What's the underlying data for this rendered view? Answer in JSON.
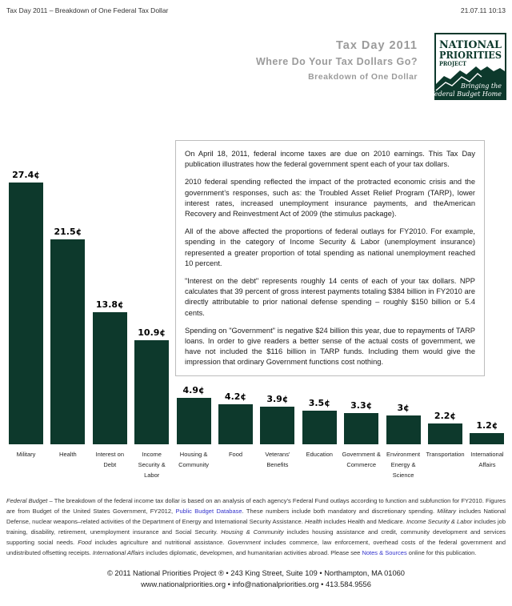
{
  "print_header": {
    "title": "Tax Day 2011 – Breakdown of One Federal Tax Dollar",
    "timestamp": "21.07.11 10:13"
  },
  "masthead": {
    "title": "Tax Day 2011",
    "subtitle": "Where Do Your Tax Dollars Go?",
    "tagline": "Breakdown of One Dollar",
    "title_color": "#9b9b9b",
    "logo": {
      "line1": "NATIONAL",
      "line2": "PRIORITIES",
      "line3": "PROJECT",
      "motto_line1": "Bringing the",
      "motto_line2": "Federal Budget Home",
      "green": "#0d392c"
    }
  },
  "intro": {
    "paragraphs": [
      "On April 18, 2011, federal income taxes are due on 2010 earnings. This Tax Day publication illustrates how the federal government spent each of your tax dollars.",
      "2010 federal spending reflected the impact of the protracted economic crisis and the government’s responses, such as: the Troubled Asset Relief Program (TARP), lower interest rates, increased unemployment insurance payments, and theAmerican Recovery and Reinvestment Act of 2009 (the stimulus package).",
      "All of the above affected the proportions of federal outlays for FY2010. For example, spending in the category of Income Security & Labor (unemployment insurance) represented a greater proportion of total spending as national unemployment reached 10 percent.",
      "\"Interest on the debt\" represents roughly 14 cents of each of your tax dollars. NPP calculates that 39 percent of gross interest payments totaling $384 billion in FY2010 are directly attributable to prior national defense spending – roughly $150 billion or 5.4 cents.",
      "Spending on \"Government\" is negative $24 billion this year, due to repayments of TARP loans. In order to give readers a better sense of the actual costs of government, we have not included the $116 billion in TARP funds. Including them would give the impression that ordinary Government functions cost nothing."
    ]
  },
  "chart_data": {
    "type": "bar",
    "title": "Breakdown of One Dollar",
    "unit": "cents per federal tax dollar",
    "categories": [
      "Military",
      "Health",
      "Interest on Debt",
      "Income Security & Labor",
      "Housing & Community",
      "Food",
      "Veterans' Benefits",
      "Education",
      "Government & Commerce",
      "Environment Energy & Science",
      "Transportation",
      "International Affairs"
    ],
    "category_lines": [
      [
        "Military"
      ],
      [
        "Health"
      ],
      [
        "Interest on",
        "Debt"
      ],
      [
        "Income",
        "Security &",
        "Labor"
      ],
      [
        "Housing &",
        "Community"
      ],
      [
        "Food"
      ],
      [
        "Veterans'",
        "Benefits"
      ],
      [
        "Education"
      ],
      [
        "Government &",
        "Commerce"
      ],
      [
        "Environment",
        "Energy &",
        "Science"
      ],
      [
        "Transportation"
      ],
      [
        "International",
        "Affairs"
      ]
    ],
    "values": [
      27.4,
      21.5,
      13.8,
      10.9,
      4.9,
      4.2,
      3.9,
      3.5,
      3.3,
      3.0,
      2.2,
      1.2
    ],
    "value_labels": [
      "27.4¢",
      "21.5¢",
      "13.8¢",
      "10.9¢",
      "4.9¢",
      "4.2¢",
      "3.9¢",
      "3.5¢",
      "3.3¢",
      "3¢",
      "2.2¢",
      "1.2¢"
    ],
    "bar_color": "#0d392c",
    "ylim": [
      0,
      28
    ],
    "grid": false,
    "legend": false
  },
  "footnote": {
    "segments": [
      {
        "t": "Federal Budget",
        "i": true
      },
      {
        "t": " – The breakdown of the federal income tax dollar is based on an analysis of each agency’s Federal Fund outlays according to function and subfunction for FY2010. Figures are from Budget of the United States Government, FY2012, "
      },
      {
        "t": "Public Budget Database",
        "link": true
      },
      {
        "t": ". These numbers include both mandatory and discretionary spending. "
      },
      {
        "t": "Military",
        "i": true
      },
      {
        "t": " includes National Defense, nuclear weapons–related activities of the Department of Energy and International Security Assistance. "
      },
      {
        "t": "Health",
        "i": true
      },
      {
        "t": " includes Health and Medicare. "
      },
      {
        "t": "Income Security & Labor",
        "i": true
      },
      {
        "t": " includes job training, disability, retirement, unemployment insurance and Social Security. "
      },
      {
        "t": "Housing & Community",
        "i": true
      },
      {
        "t": " includes housing assistance and credit, community development and services supporting social needs. "
      },
      {
        "t": "Food",
        "i": true
      },
      {
        "t": " includes agriculture and nutritional assistance. "
      },
      {
        "t": "Government",
        "i": true
      },
      {
        "t": " includes commerce, law enforcement, overhead costs of the federal government and undistributed offsetting receipts. "
      },
      {
        "t": "International Affairs",
        "i": true
      },
      {
        "t": " includes diplomatic, developmen, and humanitarian activities abroad. Please see "
      },
      {
        "t": "Notes & Sources",
        "link": true
      },
      {
        "t": " online for this publication."
      }
    ]
  },
  "copyright": {
    "line1": "© 2011 National Priorities Project ® • 243 King Street, Suite 109 • Northampton, MA 01060",
    "line2": "www.nationalpriorities.org • info@nationalpriorities.org • 413.584.9556"
  },
  "colors": {
    "bar_green": "#0d392c",
    "title_gray": "#9b9b9b",
    "link_blue": "#3333cc",
    "box_border": "#bdbdbd"
  }
}
